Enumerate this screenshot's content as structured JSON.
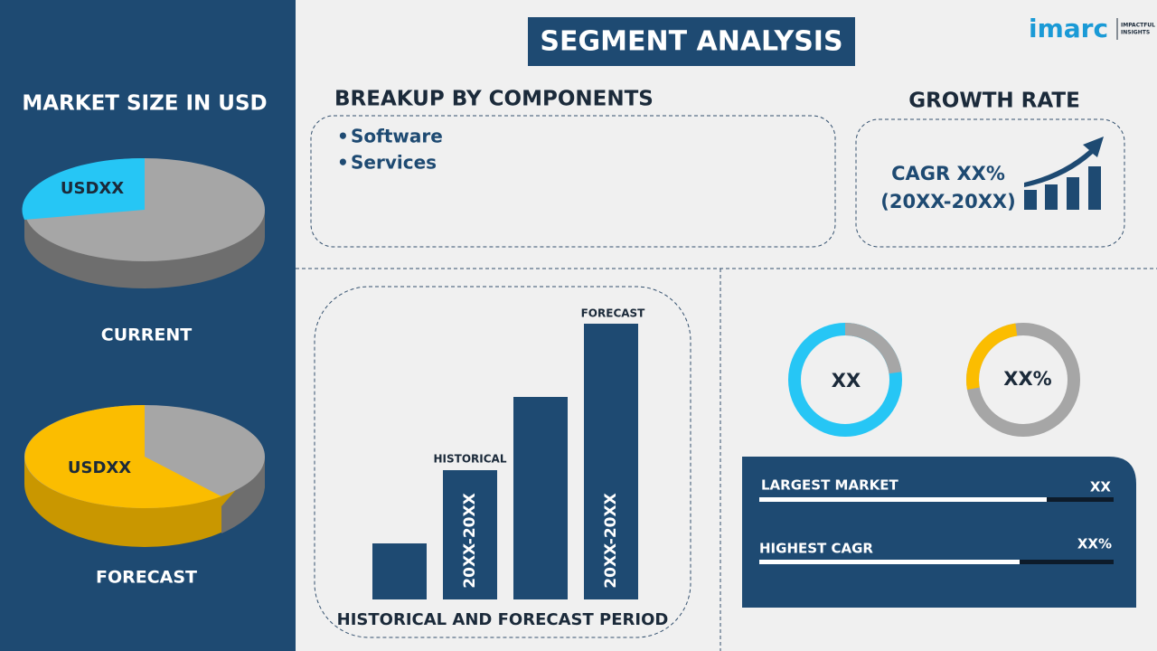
{
  "logo": {
    "brand": "imarc",
    "tagline": [
      "IMPACTFUL",
      "INSIGHTS"
    ]
  },
  "left_panel": {
    "title": "MARKET SIZE IN USD",
    "current": {
      "value": "USDXX",
      "label": "CURRENT"
    },
    "forecast": {
      "value": "USDXX",
      "label": "FORECAST"
    }
  },
  "header": {
    "title": "SEGMENT ANALYSIS"
  },
  "breakup": {
    "title": "BREAKUP BY COMPONENTS",
    "items": [
      "Software",
      "Services"
    ]
  },
  "growth": {
    "title": "GROWTH RATE",
    "cagr": "CAGR XX%",
    "period": "(20XX-20XX)"
  },
  "period_chart": {
    "title": "HISTORICAL AND FORECAST PERIOD",
    "historical": {
      "label": "HISTORICAL",
      "period": "20XX-20XX"
    },
    "forecast": {
      "label": "FORECAST",
      "period": "20XX-20XX"
    }
  },
  "donuts": [
    "XX",
    "XX%"
  ],
  "stats": [
    {
      "label": "LARGEST MARKET",
      "value": "XX"
    },
    {
      "label": "HIGHEST CAGR",
      "value": "XX%"
    }
  ]
}
